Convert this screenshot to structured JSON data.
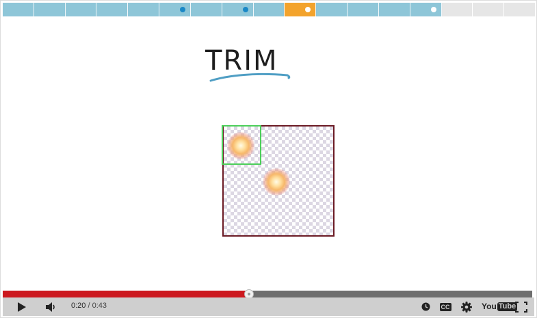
{
  "lesson_nav": {
    "segments": [
      {
        "state": "done",
        "dot": false
      },
      {
        "state": "done",
        "dot": false
      },
      {
        "state": "done",
        "dot": false
      },
      {
        "state": "done",
        "dot": false
      },
      {
        "state": "done",
        "dot": false
      },
      {
        "state": "done",
        "dot": true
      },
      {
        "state": "done",
        "dot": false
      },
      {
        "state": "done",
        "dot": true
      },
      {
        "state": "done",
        "dot": false
      },
      {
        "state": "current",
        "dot": true
      },
      {
        "state": "done",
        "dot": false
      },
      {
        "state": "done",
        "dot": false
      },
      {
        "state": "done",
        "dot": false
      },
      {
        "state": "done-white-dot",
        "dot": true
      },
      {
        "state": "upcoming",
        "dot": false
      },
      {
        "state": "upcoming",
        "dot": false
      },
      {
        "state": "upcoming",
        "dot": false
      }
    ],
    "colors": {
      "done": "#8ec6d8",
      "current": "#f3a32c",
      "upcoming": "#e6e6e6",
      "dot": "#1a88c6"
    }
  },
  "video": {
    "title_text": "TRIM",
    "colors": {
      "title_underline": "#4f9ec4",
      "trim_rect": "#4ccf5a",
      "canvas_border": "#6b1a24"
    }
  },
  "player": {
    "current_time": "0:20",
    "separator": " / ",
    "duration": "0:43",
    "progress_fraction": 0.4651,
    "icons": [
      "play-icon",
      "volume-icon",
      "watch-later-icon",
      "captions-icon",
      "settings-icon",
      "youtube-logo",
      "fullscreen-icon"
    ],
    "captions_label": "CC",
    "logo_you": "You",
    "logo_tube": "Tube",
    "colors": {
      "played": "#cc181e",
      "unplayed": "#6e6e6e",
      "bar_bg": "#cfcfcf"
    }
  }
}
